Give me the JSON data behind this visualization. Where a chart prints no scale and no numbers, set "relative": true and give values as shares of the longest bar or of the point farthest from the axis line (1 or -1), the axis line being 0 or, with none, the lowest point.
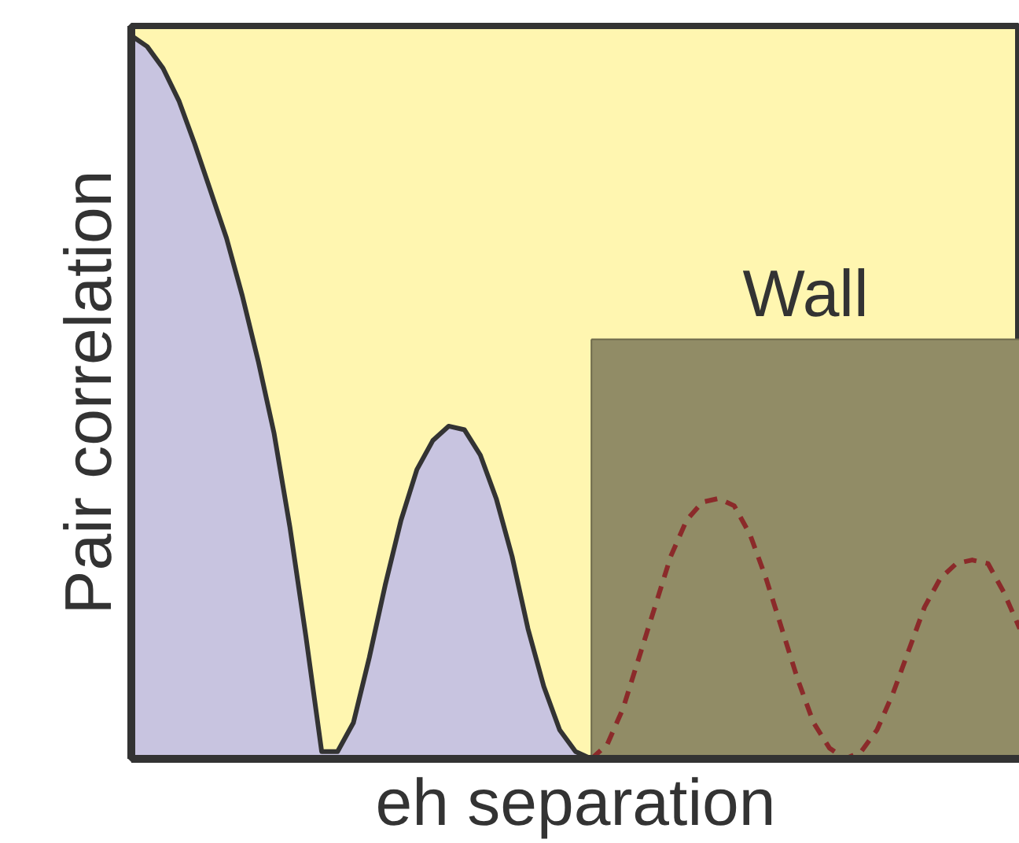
{
  "chart_data": {
    "type": "area",
    "relative": true,
    "xlabel": "eh separation",
    "ylabel": "Pair correlation",
    "categories": [
      null,
      null,
      null,
      null,
      null,
      null,
      null,
      null,
      null,
      null,
      null,
      null,
      null,
      null,
      null,
      null,
      null,
      null,
      null,
      null,
      null,
      null,
      null,
      null,
      null,
      null,
      null,
      null,
      null,
      null,
      null,
      null,
      null,
      null,
      null,
      null,
      null,
      null,
      null,
      null,
      null,
      null,
      null,
      null,
      null,
      null,
      null,
      null,
      null,
      null,
      null,
      null,
      null,
      null,
      null,
      null,
      null
    ],
    "series": [
      {
        "color": "#c8c4e0",
        "values": [
          1,
          0.985,
          0.955,
          0.91,
          0.85,
          0.785,
          0.72,
          0.64,
          0.55,
          0.45,
          0.32,
          0.17,
          0.01,
          0.01,
          0.05,
          0.14,
          0.24,
          0.33,
          0.4,
          0.44,
          0.46,
          0.455,
          0.42,
          0.36,
          0.28,
          0.18,
          0.1,
          0.04,
          0.01,
          0,
          null,
          null,
          null,
          null,
          null,
          null,
          null,
          null,
          null,
          null,
          null,
          null,
          null,
          null,
          null,
          null,
          null,
          null,
          null,
          null,
          null,
          null,
          null,
          null,
          null,
          null,
          null
        ]
      },
      {
        "name": "Wall",
        "color": "#918c66",
        "values": [
          null,
          null,
          null,
          null,
          null,
          null,
          null,
          null,
          null,
          null,
          null,
          null,
          null,
          null,
          null,
          null,
          null,
          null,
          null,
          null,
          null,
          null,
          null,
          null,
          null,
          null,
          null,
          null,
          null,
          0.58,
          0.58,
          0.58,
          0.58,
          0.58,
          0.58,
          0.58,
          0.58,
          0.58,
          0.58,
          0.58,
          0.58,
          0.58,
          0.58,
          0.58,
          0.58,
          0.58,
          0.58,
          0.58,
          0.58,
          0.58,
          0.58,
          0.58,
          0.58,
          0.58,
          0.58,
          0.58,
          0.58
        ]
      },
      {
        "type": "line",
        "color": "#8b2a2a",
        "line_style": "dashed",
        "values": [
          null,
          null,
          null,
          null,
          null,
          null,
          null,
          null,
          null,
          null,
          null,
          null,
          null,
          null,
          null,
          null,
          null,
          null,
          null,
          null,
          null,
          null,
          null,
          null,
          null,
          null,
          null,
          null,
          null,
          0,
          0.02,
          0.07,
          0.14,
          0.21,
          0.28,
          0.33,
          0.355,
          0.36,
          0.35,
          0.31,
          0.25,
          0.18,
          0.11,
          0.05,
          0.015,
          0,
          0.01,
          0.04,
          0.09,
          0.15,
          0.21,
          0.25,
          0.27,
          0.275,
          0.27,
          0.23,
          0.18
        ]
      }
    ],
    "line_style": "solid"
  }
}
